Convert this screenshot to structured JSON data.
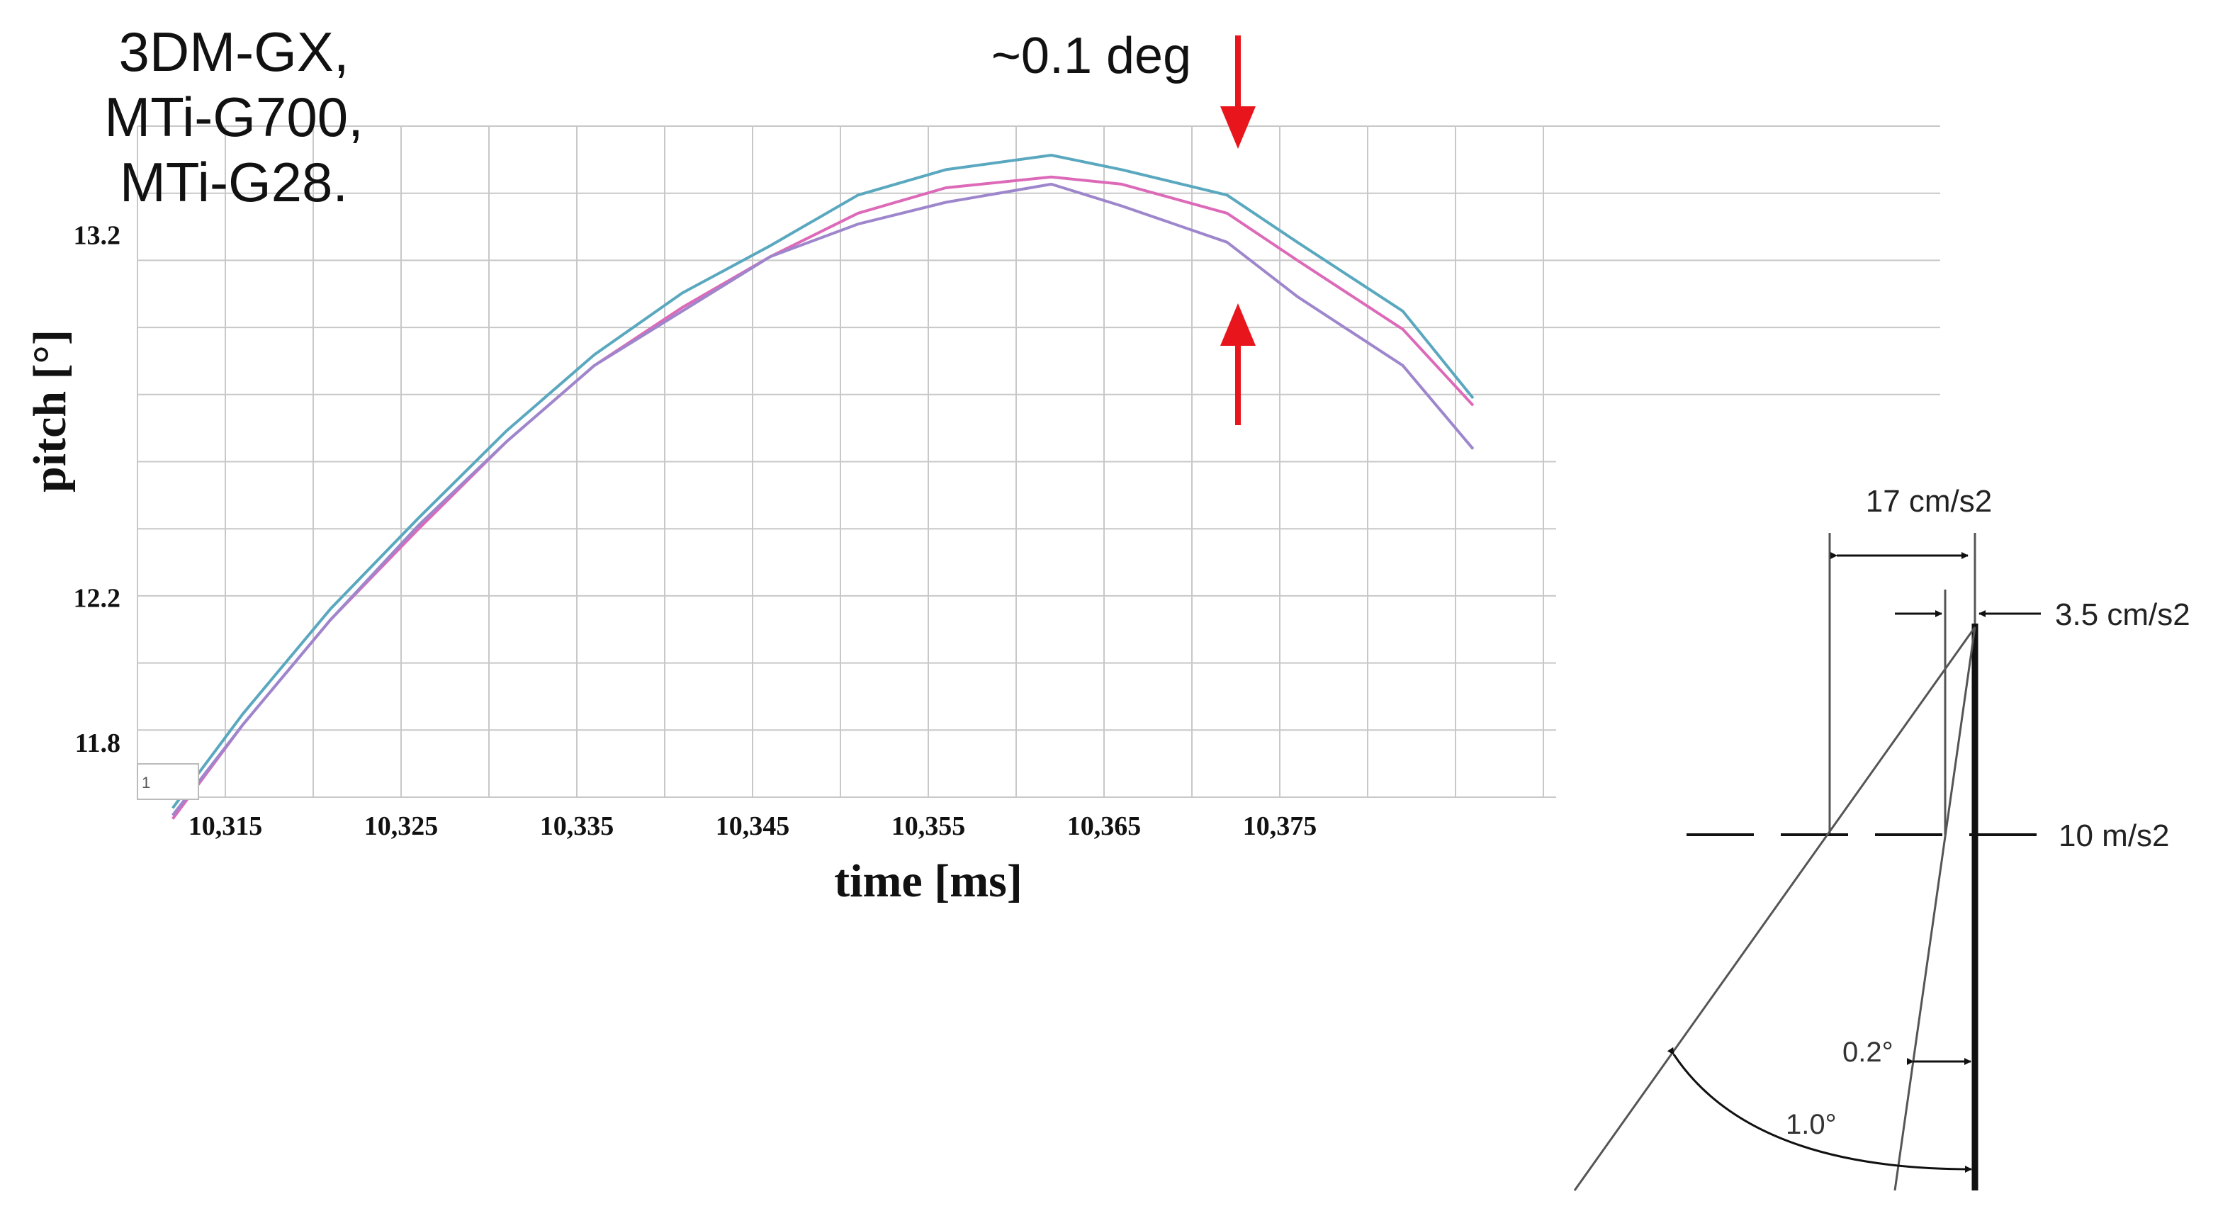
{
  "legend": {
    "lines": [
      "3DM-GX,",
      "MTi-G700,",
      "MTi-G28."
    ]
  },
  "annotation": {
    "label": "~0.1 deg",
    "arrow_color": "#e8161c"
  },
  "chart_data": {
    "type": "line",
    "title": "",
    "xlabel": "time [ms]",
    "ylabel": "pitch [°]",
    "x_ticks": [
      "10,315",
      "10,325",
      "10,335",
      "10,345",
      "10,355",
      "10,365",
      "10,375"
    ],
    "x_tick_values": [
      10315,
      10325,
      10335,
      10345,
      10355,
      10365,
      10375
    ],
    "y_ticks": [
      "13.2",
      "12.2",
      "11.8"
    ],
    "y_tick_values": [
      13.2,
      12.2,
      11.8
    ],
    "box_label": "1",
    "xlim": [
      10310,
      10390
    ],
    "ylim": [
      11.65,
      13.5
    ],
    "grid": true,
    "series": [
      {
        "color": "#5aa8bf",
        "x": [
          10312,
          10316,
          10321,
          10326,
          10331,
          10336,
          10341,
          10346,
          10351,
          10356,
          10362,
          10366,
          10372,
          10376,
          10382,
          10386
        ],
        "y": [
          11.62,
          11.88,
          12.17,
          12.42,
          12.66,
          12.87,
          13.04,
          13.17,
          13.31,
          13.38,
          13.42,
          13.38,
          13.31,
          13.18,
          12.99,
          12.75
        ]
      },
      {
        "color": "#dc6ab8",
        "x": [
          10312,
          10316,
          10321,
          10326,
          10331,
          10336,
          10341,
          10346,
          10351,
          10356,
          10362,
          10366,
          10372,
          10376,
          10382,
          10386
        ],
        "y": [
          11.59,
          11.85,
          12.14,
          12.39,
          12.63,
          12.84,
          13.0,
          13.14,
          13.26,
          13.33,
          13.36,
          13.34,
          13.26,
          13.13,
          12.94,
          12.73
        ]
      },
      {
        "color": "#9e86cc",
        "x": [
          10312,
          10316,
          10321,
          10326,
          10331,
          10336,
          10341,
          10346,
          10351,
          10356,
          10362,
          10366,
          10372,
          10376,
          10382,
          10386
        ],
        "y": [
          11.6,
          11.85,
          12.14,
          12.4,
          12.63,
          12.84,
          12.99,
          13.14,
          13.23,
          13.29,
          13.34,
          13.28,
          13.18,
          13.03,
          12.84,
          12.61
        ]
      }
    ]
  },
  "diagram": {
    "label_17": "17 cm/s2",
    "label_3_5": "3.5 cm/s2",
    "label_10": "10 m/s2",
    "angle_small": "0.2°",
    "angle_large": "1.0°"
  }
}
